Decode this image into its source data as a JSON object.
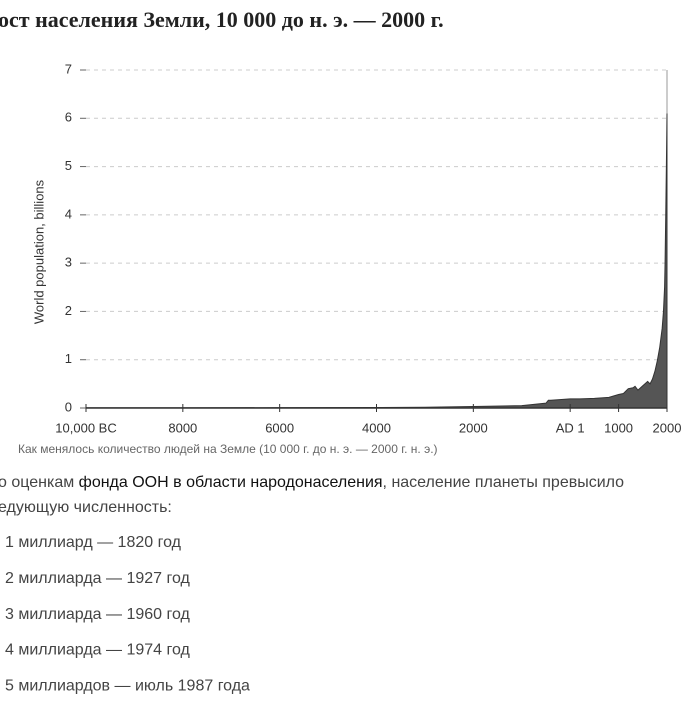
{
  "header": {
    "title": "ост населения Земли, 10 000 до н. э. — 2000 г."
  },
  "chart_data": {
    "type": "area",
    "y_label": "World population, billions",
    "x": [
      -10000,
      -8000,
      -6000,
      -4000,
      -3000,
      -2000,
      -1000,
      -500,
      -450,
      -400,
      0,
      200,
      500,
      800,
      1000,
      1100,
      1200,
      1300,
      1340,
      1400,
      1500,
      1600,
      1650,
      1700,
      1750,
      1800,
      1850,
      1900,
      1927,
      1950,
      1960,
      1974,
      1987,
      2000
    ],
    "values": [
      0.004,
      0.005,
      0.007,
      0.01,
      0.015,
      0.03,
      0.05,
      0.1,
      0.16,
      0.16,
      0.19,
      0.19,
      0.2,
      0.22,
      0.28,
      0.3,
      0.4,
      0.42,
      0.45,
      0.37,
      0.46,
      0.55,
      0.5,
      0.6,
      0.76,
      0.98,
      1.26,
      1.65,
      2,
      2.5,
      3,
      4,
      5,
      6.1
    ],
    "color": "#555555",
    "xlim": [
      -10000,
      2000
    ],
    "xticks": [
      {
        "value": -10000,
        "label": "10,000 BC"
      },
      {
        "value": -8000,
        "label": "8000"
      },
      {
        "value": -6000,
        "label": "6000"
      },
      {
        "value": -4000,
        "label": "4000"
      },
      {
        "value": -2000,
        "label": "2000"
      },
      {
        "value": 0,
        "label": "AD 1"
      },
      1000,
      2000
    ],
    "ylim": [
      0,
      7
    ],
    "yticks": [
      0,
      1,
      2,
      3,
      4,
      5,
      6,
      7
    ],
    "grid": true
  },
  "caption": "Как менялось количество людей на Земле (10 000 г. до н. э. — 2000 г. н. э.)",
  "paragraph": {
    "before": "о оценкам ",
    "link": "фонда ООН в области народонаселения",
    "after": ", население планеты превысило",
    "line2": "едующую численность:"
  },
  "list": [
    "1 миллиард — 1820 год",
    "2 миллиарда — 1927 год",
    "3 миллиарда — 1960 год",
    "4 миллиарда — 1974 год",
    "5 миллиардов — июль 1987 года"
  ]
}
